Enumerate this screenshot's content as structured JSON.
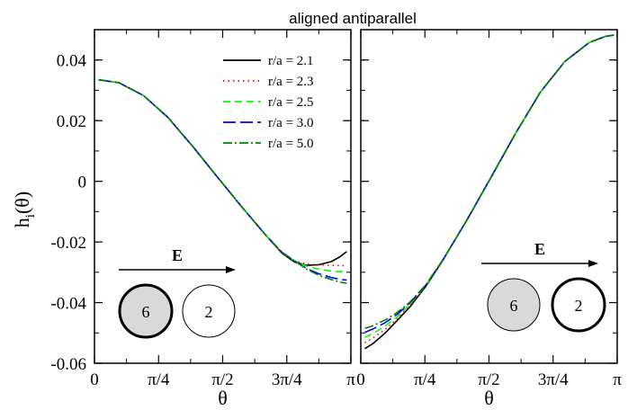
{
  "chart_data": {
    "type": "line",
    "title": "aligned antiparallel",
    "ylabel_main": "h",
    "ylabel_sub": "i",
    "ylabel_arg": "(θ)",
    "ylim": [
      -0.06,
      0.05
    ],
    "yticks": [
      {
        "v": 0.04,
        "label": "0.04"
      },
      {
        "v": 0.02,
        "label": "0.02"
      },
      {
        "v": 0.0,
        "label": "0"
      },
      {
        "v": -0.02,
        "label": "-0.02"
      },
      {
        "v": -0.04,
        "label": "-0.04"
      },
      {
        "v": -0.06,
        "label": "-0.06"
      }
    ],
    "legend_position": "top-right",
    "series_styles": [
      {
        "name": "r/a = 2.1",
        "color": "#000000",
        "dash": ""
      },
      {
        "name": "r/a = 2.3",
        "color": "#ff0000",
        "dash": "1.5,4"
      },
      {
        "name": "r/a = 2.5",
        "color": "#00ff00",
        "dash": "8,5"
      },
      {
        "name": "r/a = 3.0",
        "color": "#0000ff",
        "dash": "14,5"
      },
      {
        "name": "r/a = 5.0",
        "color": "#008000",
        "dash": "10,3,2,3"
      }
    ],
    "panels": [
      {
        "xlabel": "θ",
        "xlim": [
          0,
          3.1416
        ],
        "xticks": [
          {
            "v": 0,
            "label": "0"
          },
          {
            "v": 0.7854,
            "label": "π/4"
          },
          {
            "v": 1.5708,
            "label": "π/2"
          },
          {
            "v": 2.3562,
            "label": "3π/4"
          },
          {
            "v": 3.1416,
            "label": "π"
          }
        ],
        "inset": {
          "field_label": "E",
          "left_label": "6",
          "right_label": "2",
          "bold_ring": "left"
        },
        "series": [
          {
            "name": "r/a = 2.1",
            "x": [
              0.05,
              0.3,
              0.6,
              0.9,
              1.2,
              1.5,
              1.8,
              2.1,
              2.3,
              2.45,
              2.6,
              2.75,
              2.9,
              3.0,
              3.09
            ],
            "y": [
              0.0335,
              0.0325,
              0.0283,
              0.0211,
              0.0116,
              0.0016,
              -0.0083,
              -0.0178,
              -0.0238,
              -0.0266,
              -0.0277,
              -0.0275,
              -0.0265,
              -0.025,
              -0.0232
            ]
          },
          {
            "name": "r/a = 2.3",
            "x": [
              0.05,
              0.3,
              0.6,
              0.9,
              1.2,
              1.5,
              1.8,
              2.1,
              2.3,
              2.45,
              2.6,
              2.75,
              2.9,
              3.0,
              3.09
            ],
            "y": [
              0.0335,
              0.0325,
              0.0283,
              0.0211,
              0.0116,
              0.0016,
              -0.0083,
              -0.0178,
              -0.0238,
              -0.0262,
              -0.0273,
              -0.0276,
              -0.0277,
              -0.0278,
              -0.0278
            ]
          },
          {
            "name": "r/a = 2.5",
            "x": [
              0.05,
              0.3,
              0.6,
              0.9,
              1.2,
              1.5,
              1.8,
              2.1,
              2.3,
              2.45,
              2.6,
              2.75,
              2.9,
              3.0,
              3.09
            ],
            "y": [
              0.0335,
              0.0325,
              0.0283,
              0.0211,
              0.0116,
              0.0016,
              -0.0083,
              -0.0178,
              -0.0236,
              -0.0262,
              -0.028,
              -0.029,
              -0.0296,
              -0.0298,
              -0.0299
            ]
          },
          {
            "name": "r/a = 3.0",
            "x": [
              0.05,
              0.3,
              0.6,
              0.9,
              1.2,
              1.5,
              1.8,
              2.1,
              2.3,
              2.45,
              2.6,
              2.75,
              2.9,
              3.0,
              3.09
            ],
            "y": [
              0.0335,
              0.0325,
              0.0283,
              0.0211,
              0.0116,
              0.0016,
              -0.0083,
              -0.0178,
              -0.0235,
              -0.0263,
              -0.0288,
              -0.0305,
              -0.0317,
              -0.0323,
              -0.0326
            ]
          },
          {
            "name": "r/a = 5.0",
            "x": [
              0.05,
              0.3,
              0.6,
              0.9,
              1.2,
              1.5,
              1.8,
              2.1,
              2.3,
              2.45,
              2.6,
              2.75,
              2.9,
              3.0,
              3.09
            ],
            "y": [
              0.0335,
              0.0325,
              0.0283,
              0.0211,
              0.0116,
              0.0016,
              -0.0083,
              -0.0178,
              -0.0234,
              -0.0262,
              -0.029,
              -0.031,
              -0.0324,
              -0.0332,
              -0.0336
            ]
          }
        ]
      },
      {
        "xlabel": "θ",
        "xlim": [
          0,
          3.1416
        ],
        "xticks": [
          {
            "v": 0,
            "label": "0"
          },
          {
            "v": 0.7854,
            "label": "π/4"
          },
          {
            "v": 1.5708,
            "label": "π/2"
          },
          {
            "v": 2.3562,
            "label": "3π/4"
          },
          {
            "v": 3.1416,
            "label": "π"
          }
        ],
        "inset": {
          "field_label": "E",
          "left_label": "6",
          "right_label": "2",
          "bold_ring": "right"
        },
        "series": [
          {
            "name": "r/a = 2.1",
            "x": [
              0.05,
              0.15,
              0.3,
              0.45,
              0.6,
              0.8,
              1.0,
              1.3,
              1.6,
              1.9,
              2.2,
              2.5,
              2.8,
              3.0,
              3.1
            ],
            "y": [
              -0.0552,
              -0.0535,
              -0.05,
              -0.0458,
              -0.0415,
              -0.0345,
              -0.0263,
              -0.0128,
              0.0015,
              0.016,
              0.0294,
              0.0395,
              0.0458,
              0.0478,
              0.0482
            ]
          },
          {
            "name": "r/a = 2.3",
            "x": [
              0.05,
              0.15,
              0.3,
              0.45,
              0.6,
              0.8,
              1.0,
              1.3,
              1.6,
              1.9,
              2.2,
              2.5,
              2.8,
              3.0,
              3.1
            ],
            "y": [
              -0.0532,
              -0.0517,
              -0.0488,
              -0.0452,
              -0.041,
              -0.0343,
              -0.0262,
              -0.0128,
              0.0015,
              0.016,
              0.0294,
              0.0395,
              0.0458,
              0.0478,
              0.0482
            ]
          },
          {
            "name": "r/a = 2.5",
            "x": [
              0.05,
              0.15,
              0.3,
              0.45,
              0.6,
              0.8,
              1.0,
              1.3,
              1.6,
              1.9,
              2.2,
              2.5,
              2.8,
              3.0,
              3.1
            ],
            "y": [
              -0.0515,
              -0.0502,
              -0.0477,
              -0.0446,
              -0.0406,
              -0.0342,
              -0.0262,
              -0.0128,
              0.0015,
              0.016,
              0.0294,
              0.0395,
              0.0458,
              0.0478,
              0.0482
            ]
          },
          {
            "name": "r/a = 3.0",
            "x": [
              0.05,
              0.15,
              0.3,
              0.45,
              0.6,
              0.8,
              1.0,
              1.3,
              1.6,
              1.9,
              2.2,
              2.5,
              2.8,
              3.0,
              3.1
            ],
            "y": [
              -0.0498,
              -0.0487,
              -0.0466,
              -0.0438,
              -0.0402,
              -0.0341,
              -0.0262,
              -0.0128,
              0.0015,
              0.016,
              0.0294,
              0.0395,
              0.0458,
              0.0478,
              0.0482
            ]
          },
          {
            "name": "r/a = 5.0",
            "x": [
              0.05,
              0.15,
              0.3,
              0.45,
              0.6,
              0.8,
              1.0,
              1.3,
              1.6,
              1.9,
              2.2,
              2.5,
              2.8,
              3.0,
              3.1
            ],
            "y": [
              -0.0485,
              -0.0476,
              -0.0457,
              -0.0432,
              -0.0399,
              -0.034,
              -0.0262,
              -0.0128,
              0.0015,
              0.016,
              0.0294,
              0.0395,
              0.0458,
              0.0478,
              0.0482
            ]
          }
        ]
      }
    ]
  }
}
